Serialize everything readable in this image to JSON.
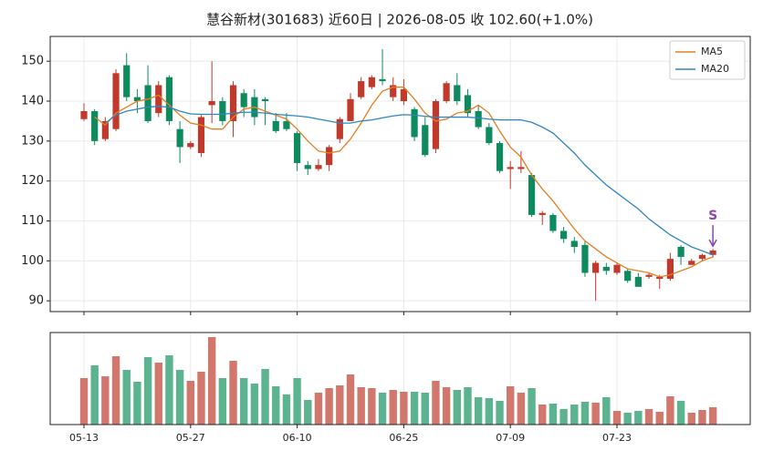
{
  "chart_data": [
    {
      "type": "candlestick",
      "title": "慧谷新材(301683) 近60日  |  2026-08-05 收 102.60(+1.0%)",
      "up_color": "#c0392b",
      "down_color": "#0e8a5f",
      "open": [
        135.5,
        137.5,
        130.5,
        133,
        149,
        141,
        144,
        137,
        146,
        133,
        128.5,
        127,
        139,
        140,
        135,
        142,
        141,
        140.5,
        135,
        135,
        132,
        124,
        123,
        124,
        130.5,
        135,
        141,
        143.5,
        145.5,
        141,
        140,
        138,
        134,
        128,
        140,
        144,
        141.5,
        137.5,
        133.5,
        129.5,
        123,
        123,
        121.5,
        111.5,
        111.5,
        107.5,
        105,
        104,
        97,
        98.5,
        97,
        97.5,
        96,
        96,
        95.5,
        95.5,
        103.5,
        99,
        100.5,
        101.5
      ],
      "close": [
        137.5,
        130,
        135,
        147,
        141,
        140,
        135,
        144,
        135,
        128.5,
        129.5,
        136,
        140,
        135,
        144,
        138.5,
        136,
        140,
        132.5,
        133,
        124.5,
        123,
        124,
        128.5,
        135.5,
        140.5,
        145,
        146,
        145,
        144,
        143,
        131,
        126.5,
        140,
        144.5,
        140,
        137,
        133.5,
        129.5,
        122.5,
        123.5,
        123.5,
        111.5,
        112,
        107.5,
        105.5,
        103.5,
        97,
        99.5,
        97.5,
        99,
        95,
        93.5,
        96.5,
        96,
        100.5,
        101,
        100,
        101.5,
        102.6
      ],
      "low": [
        135,
        129,
        130,
        132.5,
        140,
        137,
        134.5,
        136,
        134,
        124.5,
        128,
        126,
        134.5,
        134,
        131,
        136,
        134,
        134,
        132,
        132.5,
        122.5,
        121.5,
        122.5,
        122.5,
        129.5,
        135,
        140.5,
        143,
        144,
        140,
        139,
        130,
        126,
        127,
        139.5,
        139,
        136,
        133,
        129,
        122,
        118,
        122,
        111,
        109,
        107,
        104.5,
        102,
        96,
        90,
        96.5,
        96.5,
        94.5,
        93.5,
        95.5,
        93,
        95,
        99,
        99,
        100,
        100.8
      ],
      "high": [
        139.5,
        138,
        136,
        148,
        152,
        143,
        149,
        145,
        146.5,
        135,
        130,
        136.5,
        150,
        141,
        145,
        143,
        143,
        141,
        137,
        137,
        132.5,
        125,
        125.5,
        129,
        136,
        142,
        146,
        146.5,
        153,
        146,
        145.5,
        138.5,
        136,
        140.5,
        145,
        147,
        143,
        139,
        134.5,
        130,
        125,
        127.5,
        122,
        112.5,
        112,
        108.5,
        106,
        105,
        100,
        99.5,
        99.5,
        98,
        97,
        97,
        96.5,
        102,
        104,
        100.5,
        101.8,
        103
      ],
      "series": [
        {
          "name": "MA5",
          "color": "#e67e22",
          "values": [
            null,
            136,
            134,
            137,
            138.5,
            140,
            140.5,
            141.5,
            139,
            136.5,
            134.5,
            134,
            133,
            133,
            136,
            138,
            138.5,
            137.5,
            136.5,
            135.5,
            133,
            130,
            127.5,
            127,
            127.5,
            130.5,
            134.5,
            139,
            142.5,
            143.5,
            143.5,
            140.5,
            137,
            135,
            135.5,
            137,
            137.5,
            139,
            137,
            132.5,
            128.5,
            126,
            121.5,
            118,
            115,
            111.5,
            108,
            105,
            103,
            101,
            99.5,
            98,
            97.5,
            97,
            96,
            96.5,
            97.5,
            98.5,
            100,
            101
          ]
        },
        {
          "name": "MA20",
          "color": "#2e86c1",
          "values": [
            null,
            null,
            134.5,
            136.5,
            137.5,
            138,
            138.5,
            138.7,
            138.5,
            137.5,
            136.8,
            136.7,
            136.7,
            136.7,
            137,
            137.2,
            137.2,
            137,
            136.7,
            136.5,
            136.3,
            136,
            135.5,
            135,
            134.5,
            134.5,
            135,
            135.3,
            135.8,
            136.3,
            136.6,
            136.5,
            136.2,
            136,
            136,
            136,
            136,
            135.8,
            135.5,
            135.3,
            135.3,
            135.3,
            134.7,
            133.5,
            132,
            129.5,
            127,
            124,
            121.5,
            119,
            117,
            115,
            113,
            110.5,
            108.5,
            106.5,
            105,
            103.5,
            102.5,
            101.5
          ]
        }
      ],
      "annotation": "S",
      "annotation_color": "#8e44ad",
      "ylim": [
        87.3,
        156.2
      ],
      "yticks": [
        90,
        100,
        110,
        120,
        130,
        140,
        150
      ],
      "grid": true,
      "legend": "upper right"
    },
    {
      "type": "bar",
      "up_color": "#d2776c",
      "down_color": "#5bb38f",
      "categories": [
        "05-13",
        null,
        null,
        null,
        null,
        null,
        null,
        null,
        null,
        null,
        "05-27",
        null,
        null,
        null,
        null,
        null,
        null,
        null,
        null,
        null,
        "06-10",
        null,
        null,
        null,
        null,
        null,
        null,
        null,
        null,
        null,
        "06-25",
        null,
        null,
        null,
        null,
        null,
        null,
        null,
        null,
        null,
        "07-09",
        null,
        null,
        null,
        null,
        null,
        null,
        null,
        null,
        null,
        "07-23",
        null,
        null,
        null,
        null,
        null,
        null,
        null,
        null,
        null
      ],
      "values": [
        51,
        65,
        53,
        75,
        60,
        47,
        74,
        68,
        76,
        60,
        48,
        58,
        96,
        51,
        70,
        51,
        45,
        61,
        42,
        33,
        51,
        27,
        35,
        40,
        43,
        55,
        41,
        40,
        35,
        38,
        36,
        36,
        35,
        48,
        41,
        38,
        41,
        30,
        29,
        26,
        42,
        35,
        40,
        22,
        23,
        17,
        22,
        25,
        24,
        30,
        15,
        13,
        15,
        17,
        14,
        31,
        26,
        13,
        16,
        19
      ],
      "ylim": [
        0,
        101
      ],
      "grid": true
    }
  ]
}
